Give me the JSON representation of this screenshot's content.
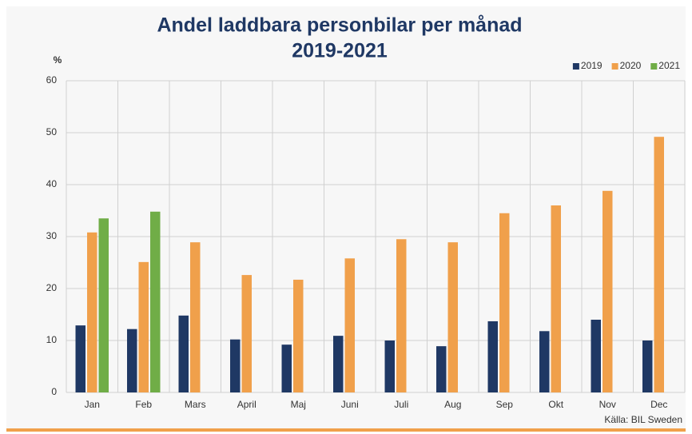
{
  "chart_data": {
    "type": "bar",
    "title": "Andel laddbara personbilar per månad",
    "subtitle": "2019-2021",
    "y_label": "%",
    "source": "Källa: BIL Sweden",
    "categories": [
      "Jan",
      "Feb",
      "Mars",
      "April",
      "Maj",
      "Juni",
      "Juli",
      "Aug",
      "Sep",
      "Okt",
      "Nov",
      "Dec"
    ],
    "series": [
      {
        "name": "2019",
        "color": "#1f3864",
        "values": [
          12.9,
          12.2,
          14.8,
          10.2,
          9.2,
          10.9,
          10.0,
          8.9,
          13.7,
          11.8,
          14.0,
          10.0
        ]
      },
      {
        "name": "2020",
        "color": "#f0a04b",
        "values": [
          30.8,
          25.1,
          28.9,
          22.6,
          21.7,
          25.8,
          29.5,
          28.9,
          34.5,
          36.0,
          38.8,
          49.2
        ]
      },
      {
        "name": "2021",
        "color": "#70ad47",
        "values": [
          33.5,
          34.8,
          null,
          null,
          null,
          null,
          null,
          null,
          null,
          null,
          null,
          null
        ]
      }
    ],
    "ylim": [
      0,
      60
    ],
    "yticks": [
      0,
      10,
      20,
      30,
      40,
      50,
      60
    ],
    "grid": true,
    "legend": "top-right"
  }
}
